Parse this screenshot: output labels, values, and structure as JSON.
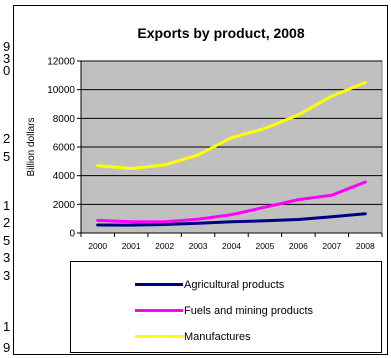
{
  "left_edge_fragments": [
    "9",
    "3",
    "0",
    "2",
    "5",
    "1",
    "2",
    "5",
    "3",
    "3",
    "1",
    "9"
  ],
  "chart_data": {
    "type": "line",
    "title": "Exports by product, 2008",
    "xlabel": "",
    "ylabel": "Billion dollars",
    "categories": [
      "2000",
      "2001",
      "2002",
      "2003",
      "2004",
      "2005",
      "2006",
      "2007",
      "2008"
    ],
    "ylim": [
      0,
      12000
    ],
    "yticks": [
      "0",
      "2000",
      "4000",
      "6000",
      "8000",
      "10000",
      "12000"
    ],
    "grid": true,
    "legend_position": "bottom",
    "plot_background": "#c0c0c0",
    "series": [
      {
        "name": "Agricultural products",
        "color": "#000080",
        "values": [
          560,
          550,
          590,
          680,
          780,
          850,
          940,
          1130,
          1340
        ]
      },
      {
        "name": "Fuels and mining products",
        "color": "#ff00ff",
        "values": [
          880,
          790,
          780,
          960,
          1280,
          1800,
          2330,
          2640,
          3560
        ]
      },
      {
        "name": "Manufactures",
        "color": "#ffff00",
        "values": [
          4700,
          4500,
          4750,
          5450,
          6650,
          7300,
          8250,
          9550,
          10500
        ]
      }
    ]
  }
}
